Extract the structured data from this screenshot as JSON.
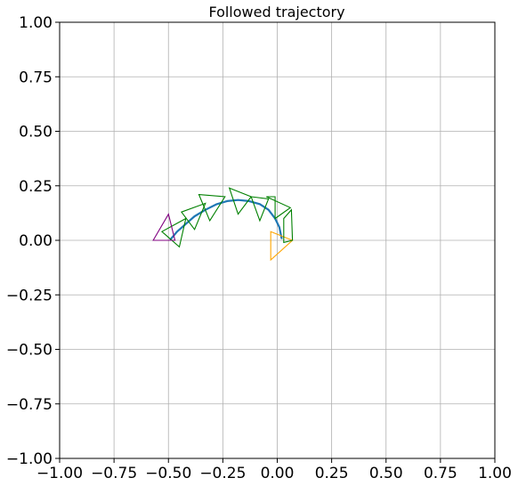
{
  "chart_data": {
    "type": "line",
    "title": "Followed trajectory",
    "xlabel": "",
    "ylabel": "",
    "xlim": [
      -1.0,
      1.0
    ],
    "ylim": [
      -1.0,
      1.0
    ],
    "grid": true,
    "x_ticks": [
      -1.0,
      -0.75,
      -0.5,
      -0.25,
      0.0,
      0.25,
      0.5,
      0.75,
      1.0
    ],
    "x_tick_labels": [
      "−1.00",
      "−0.75",
      "−0.50",
      "−0.25",
      "0.00",
      "0.25",
      "0.50",
      "0.75",
      "1.00"
    ],
    "y_ticks": [
      1.0,
      0.75,
      0.5,
      0.25,
      0.0,
      -0.25,
      -0.5,
      -0.75,
      -1.0
    ],
    "y_tick_labels": [
      "1.00",
      "0.75",
      "0.50",
      "0.25",
      "0.00",
      "−0.25",
      "−0.50",
      "−0.75",
      "−1.00"
    ],
    "colors": {
      "trajectory": "#1f77b4",
      "start_pose": "#ffa500",
      "intermediate_poses": "#008000",
      "end_pose": "#800080",
      "grid": "#b0b0b0"
    },
    "trajectory": {
      "x": [
        0.02,
        0.01,
        -0.01,
        -0.04,
        -0.08,
        -0.13,
        -0.18,
        -0.23,
        -0.28,
        -0.33,
        -0.38,
        -0.42,
        -0.46,
        -0.49
      ],
      "y": [
        0.01,
        0.06,
        0.1,
        0.14,
        0.166,
        0.18,
        0.185,
        0.18,
        0.165,
        0.14,
        0.11,
        0.075,
        0.04,
        0.005
      ]
    },
    "poses": [
      {
        "kind": "start",
        "points": [
          [
            -0.03,
            0.04
          ],
          [
            0.07,
            0.0
          ],
          [
            -0.03,
            -0.09
          ]
        ]
      },
      {
        "kind": "intermediate",
        "points": [
          [
            0.03,
            0.1
          ],
          [
            0.03,
            -0.01
          ],
          [
            0.07,
            0.0
          ],
          [
            0.065,
            0.14
          ]
        ]
      },
      {
        "kind": "intermediate",
        "points": [
          [
            -0.05,
            0.2
          ],
          [
            0.06,
            0.15
          ],
          [
            -0.01,
            0.1
          ],
          [
            -0.01,
            0.2
          ]
        ]
      },
      {
        "kind": "intermediate",
        "points": [
          [
            -0.12,
            0.2
          ],
          [
            -0.04,
            0.19
          ],
          [
            -0.08,
            0.09
          ]
        ]
      },
      {
        "kind": "intermediate",
        "points": [
          [
            -0.22,
            0.24
          ],
          [
            -0.12,
            0.2
          ],
          [
            -0.18,
            0.12
          ],
          [
            -0.22,
            0.24
          ]
        ]
      },
      {
        "kind": "intermediate",
        "points": [
          [
            -0.36,
            0.21
          ],
          [
            -0.24,
            0.2
          ],
          [
            -0.31,
            0.09
          ],
          [
            -0.36,
            0.21
          ]
        ]
      },
      {
        "kind": "intermediate",
        "points": [
          [
            -0.44,
            0.13
          ],
          [
            -0.33,
            0.17
          ],
          [
            -0.38,
            0.05
          ]
        ]
      },
      {
        "kind": "intermediate",
        "points": [
          [
            -0.53,
            0.04
          ],
          [
            -0.42,
            0.1
          ],
          [
            -0.45,
            -0.03
          ]
        ]
      },
      {
        "kind": "end",
        "points": [
          [
            -0.57,
            0.0
          ],
          [
            -0.5,
            0.12
          ],
          [
            -0.47,
            0.0
          ],
          [
            -0.57,
            0.0
          ]
        ]
      }
    ]
  }
}
